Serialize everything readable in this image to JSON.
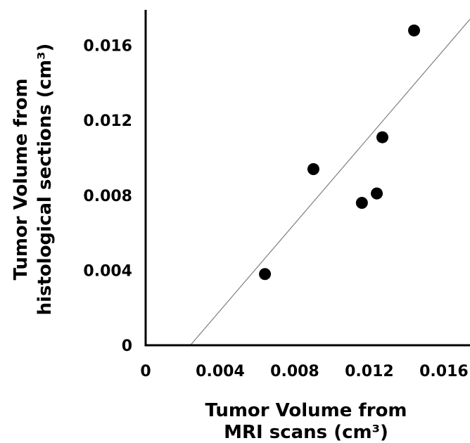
{
  "chart_data": {
    "type": "scatter",
    "title": "",
    "xlabel_lines": [
      "Tumor Volume from",
      "MRI scans (cm³)"
    ],
    "ylabel_lines": [
      "Tumor Volume from",
      "histological sections (cm³)"
    ],
    "xlim": [
      0,
      0.0174
    ],
    "ylim": [
      0,
      0.0179
    ],
    "xticks": [
      {
        "value": 0,
        "label": "0"
      },
      {
        "value": 0.004,
        "label": "0.004"
      },
      {
        "value": 0.008,
        "label": "0.008"
      },
      {
        "value": 0.012,
        "label": "0.012"
      },
      {
        "value": 0.016,
        "label": "0.016"
      }
    ],
    "yticks": [
      {
        "value": 0,
        "label": "0"
      },
      {
        "value": 0.004,
        "label": "0.004"
      },
      {
        "value": 0.008,
        "label": "0.008"
      },
      {
        "value": 0.012,
        "label": "0.012"
      },
      {
        "value": 0.016,
        "label": "0.016"
      }
    ],
    "grid": false,
    "series": [
      {
        "points": [
          {
            "x": 0.0064,
            "y": 0.0038
          },
          {
            "x": 0.009,
            "y": 0.0094
          },
          {
            "x": 0.0116,
            "y": 0.0076
          },
          {
            "x": 0.0124,
            "y": 0.0081
          },
          {
            "x": 0.0127,
            "y": 0.0111
          },
          {
            "x": 0.0144,
            "y": 0.0168
          }
        ],
        "color": "#000000"
      }
    ],
    "reference_line": {
      "points": [
        {
          "x": 0.0024,
          "y": 0
        },
        {
          "x": 0.0174,
          "y": 0.0174
        }
      ],
      "color": "#7f7f7f"
    }
  }
}
